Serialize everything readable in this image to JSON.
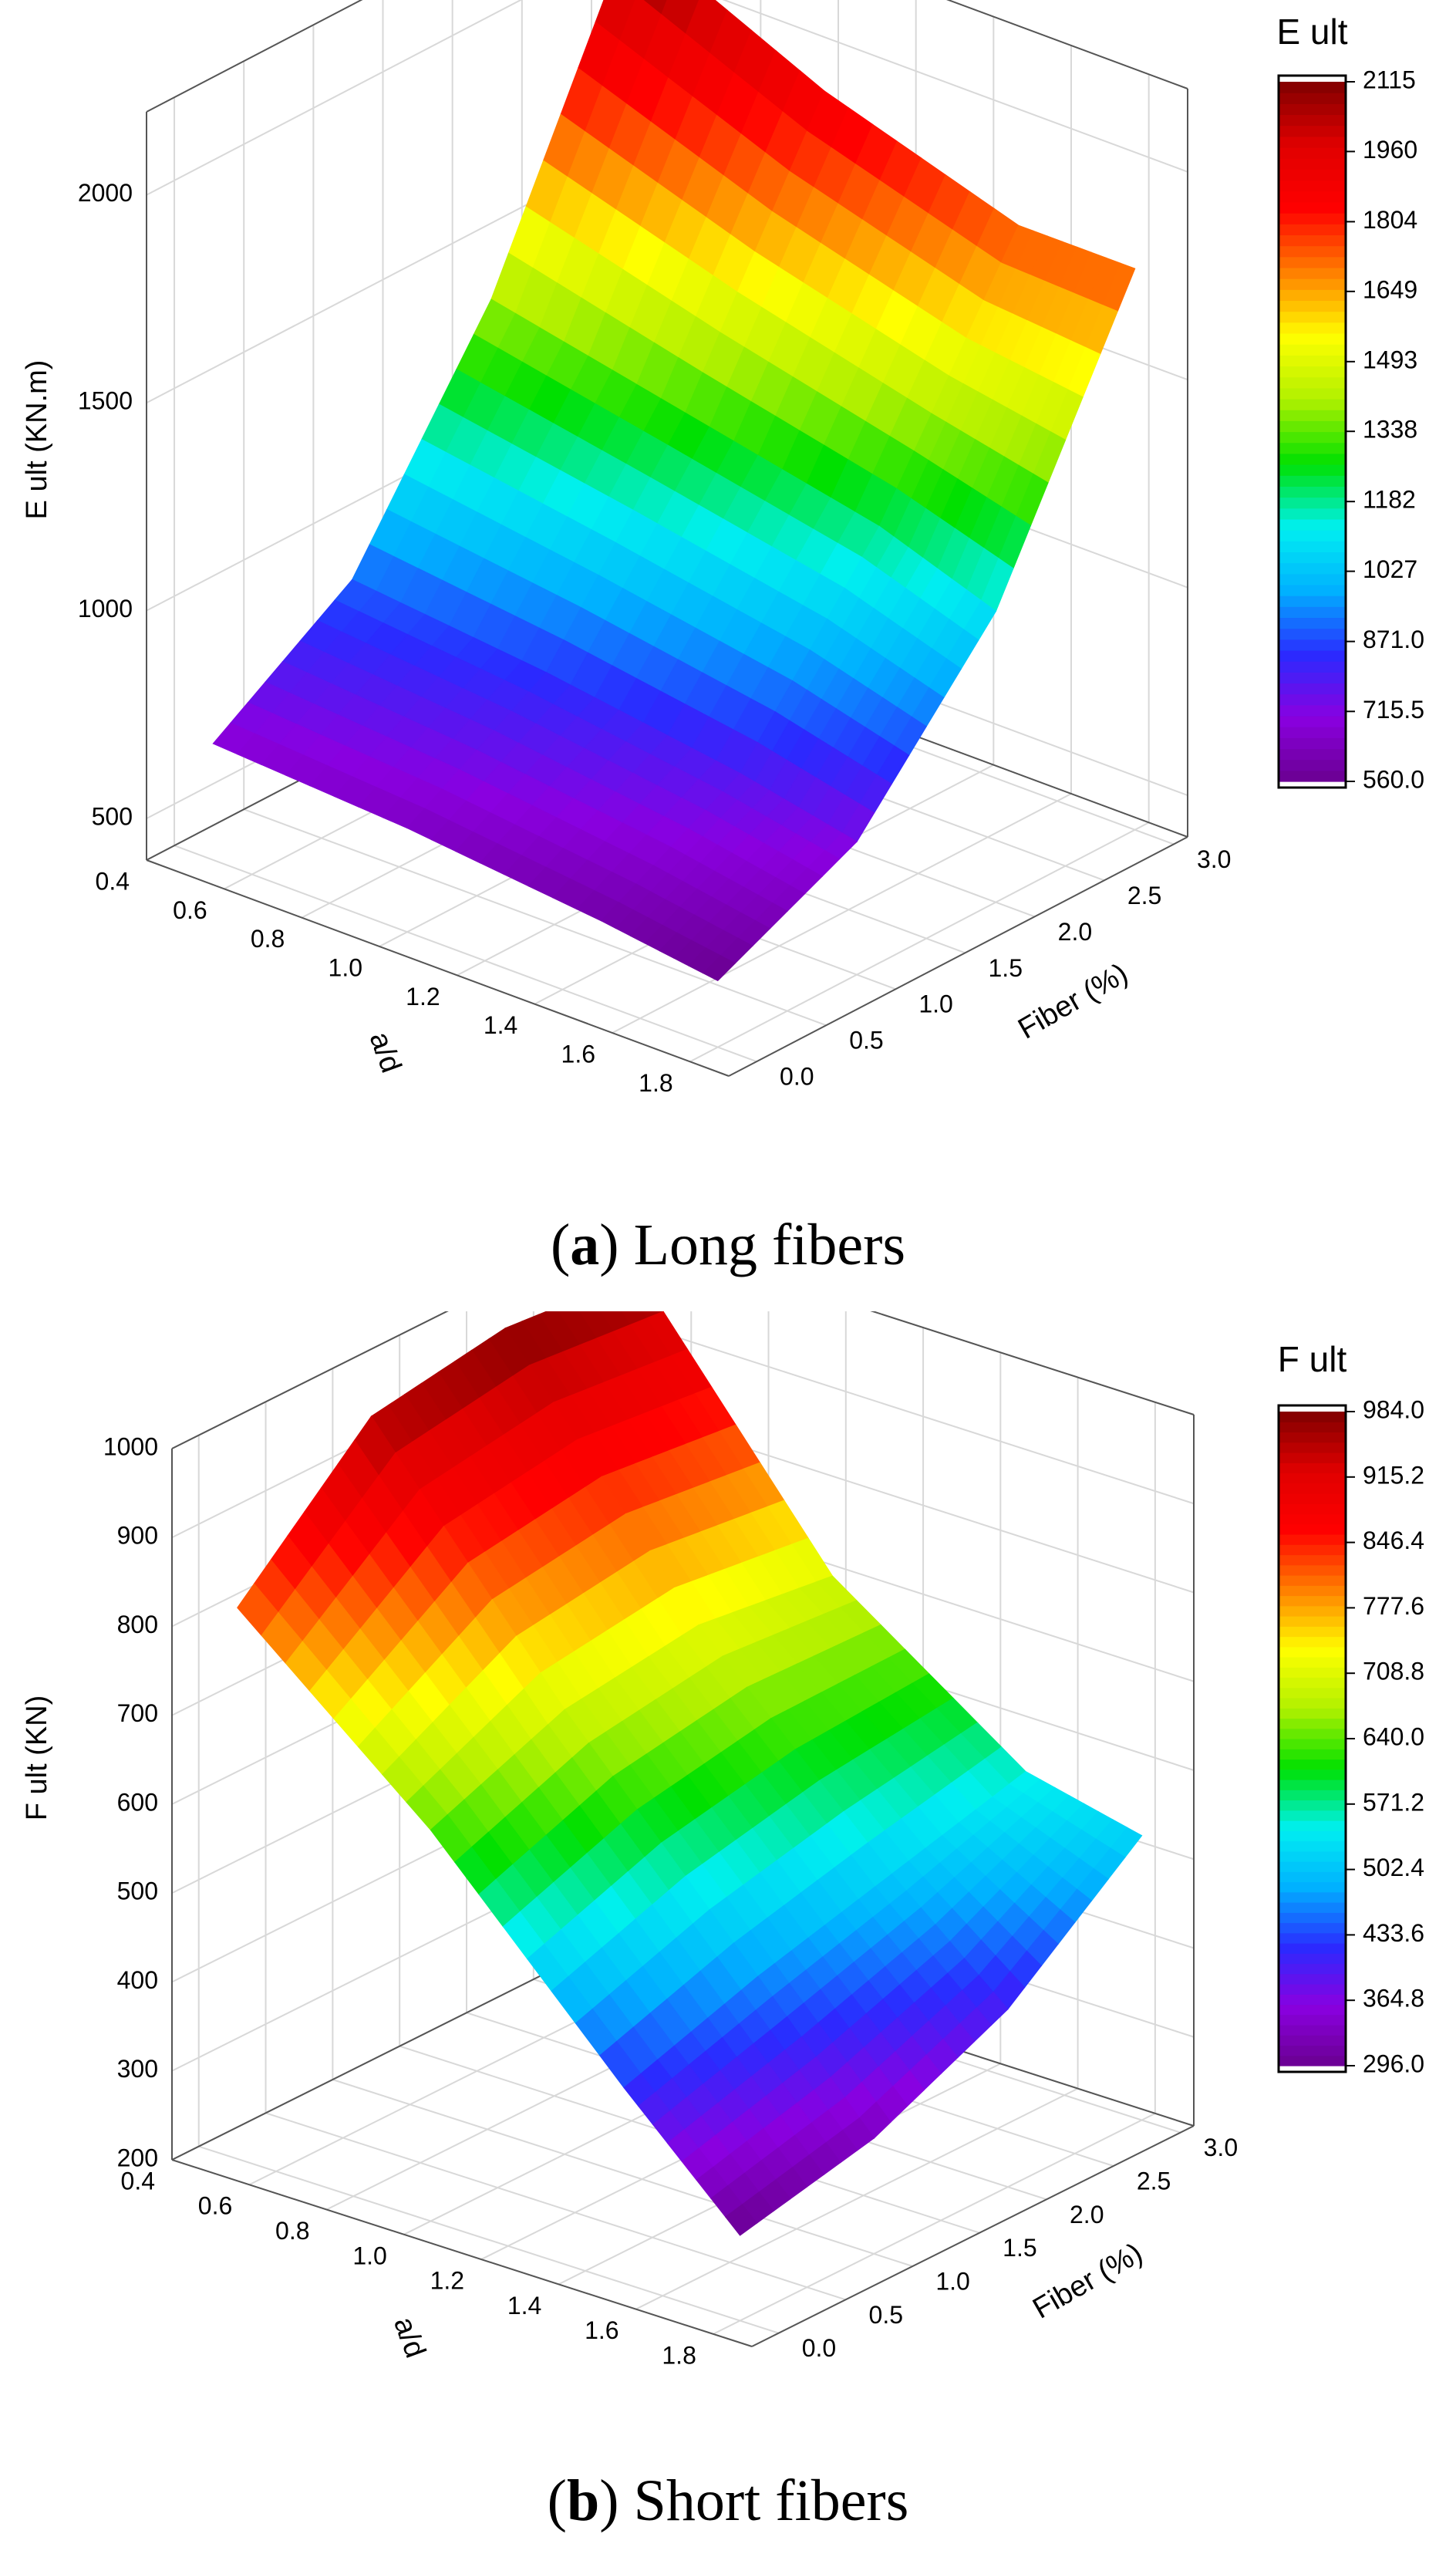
{
  "chart_data": [
    {
      "type": "surface",
      "z_label": "E ult (KN.m)",
      "x_label": "a/d",
      "y_label": "Fiber (%)",
      "x": [
        0.5,
        1.0,
        1.5,
        1.8
      ],
      "y": [
        0,
        1,
        2,
        3
      ],
      "z": [
        [
          680,
          650,
          600,
          560
        ],
        [
          900,
          850,
          780,
          720
        ],
        [
          1400,
          1300,
          1200,
          1100
        ],
        [
          2115,
          1900,
          1750,
          1750
        ]
      ],
      "xlim": [
        0.4,
        1.9
      ],
      "xticks": [
        0.4,
        0.6,
        0.8,
        {
          "value": 1,
          "label": "1.0"
        },
        1.2,
        1.4,
        1.6,
        1.8
      ],
      "ylim": [
        -0.2,
        3.1
      ],
      "yticks": [
        {
          "value": 0,
          "label": "0.0"
        },
        0.5,
        {
          "value": 1,
          "label": "1.0"
        },
        1.5,
        {
          "value": 2,
          "label": "2.0"
        },
        2.5,
        {
          "value": 3,
          "label": "3.0"
        }
      ],
      "zlim": [
        400,
        2200
      ],
      "zticks": [
        500,
        1000,
        1500,
        2000
      ],
      "grid": true,
      "colorbar": {
        "title": "E ult",
        "range": [
          560,
          2115
        ],
        "ticks": [
          2115,
          1960,
          1804,
          1649,
          1493,
          1338,
          1182,
          1027,
          {
            "value": 871,
            "label": "871.0"
          },
          715.5,
          {
            "value": 560,
            "label": "560.0"
          }
        ]
      },
      "colors": [
        "#6a0090",
        "#8a00e0",
        "#2a2aff",
        "#00b0ff",
        "#00f0f0",
        "#00e000",
        "#b0f000",
        "#ffff00",
        "#ff8000",
        "#ff0000",
        "#e00000",
        "#800000"
      ],
      "caption_parts": [
        "(",
        "a",
        ") Long fibers"
      ]
    },
    {
      "type": "surface",
      "z_label": "F ult (KN)",
      "x_label": "a/d",
      "y_label": "Fiber (%)",
      "x": [
        0.5,
        1.0,
        1.5,
        1.8
      ],
      "y": [
        0,
        1,
        2,
        3
      ],
      "z": [
        [
          820,
          640,
          420,
          296
        ],
        [
          960,
          700,
          470,
          330
        ],
        [
          984,
          720,
          510,
          400
        ],
        [
          970,
          700,
          550,
          520
        ]
      ],
      "xlim": [
        0.4,
        1.9
      ],
      "xticks": [
        0.4,
        0.6,
        0.8,
        {
          "value": 1,
          "label": "1.0"
        },
        1.2,
        1.4,
        1.6,
        1.8
      ],
      "ylim": [
        -0.2,
        3.1
      ],
      "yticks": [
        {
          "value": 0,
          "label": "0.0"
        },
        0.5,
        {
          "value": 1,
          "label": "1.0"
        },
        1.5,
        {
          "value": 2,
          "label": "2.0"
        },
        2.5,
        {
          "value": 3,
          "label": "3.0"
        }
      ],
      "zlim": [
        200,
        1000
      ],
      "zticks": [
        200,
        300,
        400,
        500,
        600,
        700,
        800,
        900,
        1000
      ],
      "grid": true,
      "colorbar": {
        "title": "F ult",
        "range": [
          296,
          984
        ],
        "ticks": [
          {
            "value": 984,
            "label": "984.0"
          },
          915.2,
          846.4,
          777.6,
          708.8,
          {
            "value": 640,
            "label": "640.0"
          },
          571.2,
          502.4,
          433.6,
          364.8,
          {
            "value": 296,
            "label": "296.0"
          }
        ]
      },
      "colors": [
        "#6a0090",
        "#8a00e0",
        "#2a2aff",
        "#00b0ff",
        "#00f0f0",
        "#00e000",
        "#b0f000",
        "#ffff00",
        "#ff8000",
        "#ff0000",
        "#e00000",
        "#800000"
      ],
      "caption_parts": [
        "(",
        "b",
        ") Short fibers"
      ]
    }
  ]
}
